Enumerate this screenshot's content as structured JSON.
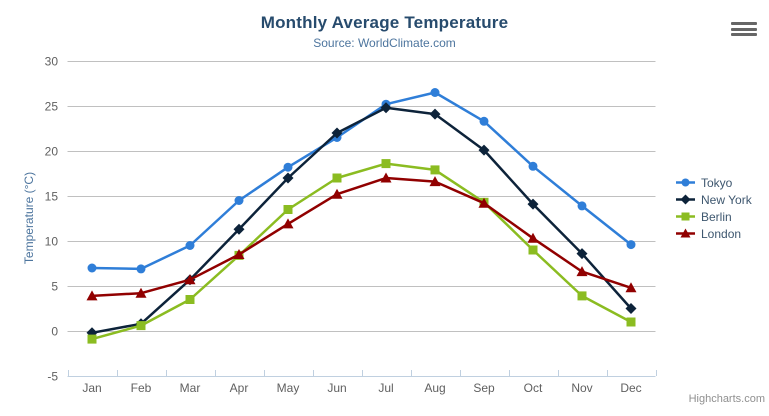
{
  "chart_data": {
    "type": "line",
    "title": "Monthly Average Temperature",
    "subtitle": "Source: WorldClimate.com",
    "ylabel": "Temperature (°C)",
    "xlabel": "",
    "categories": [
      "Jan",
      "Feb",
      "Mar",
      "Apr",
      "May",
      "Jun",
      "Jul",
      "Aug",
      "Sep",
      "Oct",
      "Nov",
      "Dec"
    ],
    "yticks": [
      -5,
      0,
      5,
      10,
      15,
      20,
      25,
      30
    ],
    "ylim": [
      -5,
      30
    ],
    "grid": true,
    "legend_position": "right",
    "series": [
      {
        "name": "Tokyo",
        "color": "#2f7ed8",
        "marker": "circle",
        "values": [
          7.0,
          6.9,
          9.5,
          14.5,
          18.2,
          21.5,
          25.2,
          26.5,
          23.3,
          18.3,
          13.9,
          9.6
        ]
      },
      {
        "name": "New York",
        "color": "#0d233a",
        "marker": "diamond",
        "values": [
          -0.2,
          0.8,
          5.7,
          11.3,
          17.0,
          22.0,
          24.8,
          24.1,
          20.1,
          14.1,
          8.6,
          2.5
        ]
      },
      {
        "name": "Berlin",
        "color": "#8bbc21",
        "marker": "square",
        "values": [
          -0.9,
          0.6,
          3.5,
          8.4,
          13.5,
          17.0,
          18.6,
          17.9,
          14.3,
          9.0,
          3.9,
          1.0
        ]
      },
      {
        "name": "London",
        "color": "#910000",
        "marker": "triangle",
        "values": [
          3.9,
          4.2,
          5.7,
          8.5,
          11.9,
          15.2,
          17.0,
          16.6,
          14.2,
          10.3,
          6.6,
          4.8
        ]
      }
    ],
    "credit": "Highcharts.com"
  },
  "icons": {
    "export_menu": "hamburger"
  },
  "colors": {
    "background": "#ffffff",
    "title": "#274b6d",
    "subtitle": "#4d759e",
    "axis_title": "#4d759e",
    "axis_labels": "#606060",
    "grid_line": "#c0c0c0",
    "axis_line": "#c0d0e0",
    "tick": "#c0d0e0",
    "legend_text": "#3e576f",
    "credit": "#909090",
    "burger": "#666666"
  }
}
